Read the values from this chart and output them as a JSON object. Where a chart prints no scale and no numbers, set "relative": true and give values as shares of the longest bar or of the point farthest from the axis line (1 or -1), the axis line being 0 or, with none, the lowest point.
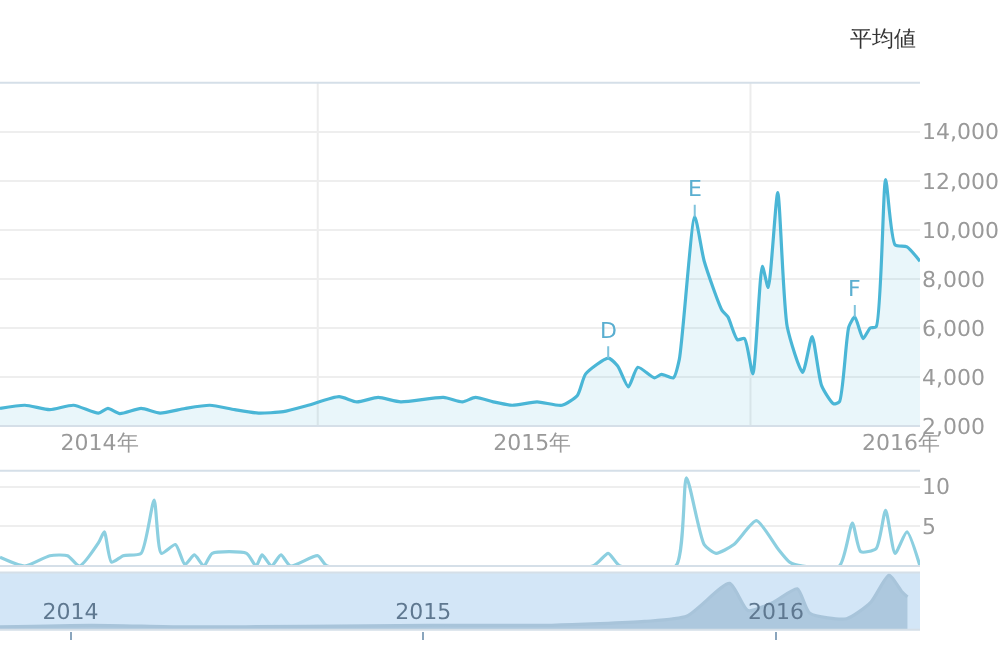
{
  "chart_data": [
    {
      "type": "area",
      "x": [
        "2014-04-08",
        "2014-04-29",
        "2014-05-20",
        "2014-06-09",
        "2014-06-30",
        "2014-07-08",
        "2014-07-18",
        "2014-08-05",
        "2014-08-21",
        "2014-09-11",
        "2014-10-02",
        "2014-10-23",
        "2014-11-12",
        "2014-12-03",
        "2014-12-24",
        "2015-01-19",
        "2015-02-03",
        "2015-02-21",
        "2015-03-12",
        "2015-04-17",
        "2015-05-03",
        "2015-05-14",
        "2015-05-29",
        "2015-06-14",
        "2015-07-05",
        "2015-07-26",
        "2015-08-08",
        "2015-08-15",
        "2015-09-03",
        "2015-09-11",
        "2015-09-20",
        "2015-09-28",
        "2015-10-12",
        "2015-10-18",
        "2015-10-28",
        "2015-11-02",
        "2015-11-15",
        "2015-11-23",
        "2015-12-08",
        "2015-12-13",
        "2015-12-21",
        "2015-12-27",
        "2016-01-03",
        "2016-01-11",
        "2016-01-16",
        "2016-01-24",
        "2016-02-01",
        "2016-02-14",
        "2016-02-22",
        "2016-03-01",
        "2016-03-11",
        "2016-03-16",
        "2016-03-24",
        "2016-03-29",
        "2016-04-05",
        "2016-04-11",
        "2016-04-16",
        "2016-04-24",
        "2016-05-02",
        "2016-05-12",
        "2016-05-23"
      ],
      "series": [
        {
          "color": "#4ab6d6",
          "values": [
            2720,
            2850,
            2670,
            2850,
            2530,
            2720,
            2510,
            2720,
            2530,
            2720,
            2850,
            2670,
            2530,
            2590,
            2850,
            3200,
            2990,
            3170,
            2990,
            3170,
            2990,
            3170,
            2990,
            2850,
            2990,
            2850,
            3250,
            4130,
            4770,
            4450,
            3600,
            4400,
            3970,
            4110,
            3970,
            4720,
            10530,
            8720,
            6720,
            6450,
            5520,
            5570,
            4130,
            8510,
            7650,
            11520,
            6050,
            4190,
            5650,
            3650,
            2910,
            2990,
            6050,
            6450,
            5570,
            6000,
            6050,
            12050,
            9390,
            9310,
            8720
          ]
        }
      ],
      "xlim": [
        "2014-04-08",
        "2016-05-23"
      ],
      "xticks": [
        {
          "value": "2014-07-01",
          "label": "2014年"
        },
        {
          "value": "2015-07-01",
          "label": "2015年"
        },
        {
          "value": "2016-05-07",
          "label": "2016年"
        }
      ],
      "ylim": [
        2000,
        16000
      ],
      "yticks": [
        {
          "value": 2000,
          "label": "2,000"
        },
        {
          "value": 4000,
          "label": "4,000"
        },
        {
          "value": 6000,
          "label": "6,000"
        },
        {
          "value": 8000,
          "label": "8,000"
        },
        {
          "value": 10000,
          "label": "10,000"
        },
        {
          "value": 12000,
          "label": "12,000"
        },
        {
          "value": 14000,
          "label": "14,000"
        }
      ],
      "ref_lines": [
        {
          "axis": "x",
          "value": "2015-01-01",
          "color": "#ececec"
        },
        {
          "axis": "x",
          "value": "2016-01-01",
          "color": "#ececec"
        }
      ],
      "annotations": [
        {
          "text": "D",
          "x": "2015-09-03",
          "y": 4770
        },
        {
          "text": "E",
          "x": "2015-11-15",
          "y": 10530
        },
        {
          "text": "F",
          "x": "2016-03-29",
          "y": 6450
        },
        "平均値"
      ],
      "grid": "y",
      "marker": "none",
      "line_style": "solid"
    },
    {
      "type": "line",
      "x": [
        "2014-04-08",
        "2014-04-29",
        "2014-05-20",
        "2014-06-04",
        "2014-06-14",
        "2014-06-30",
        "2014-07-05",
        "2014-07-11",
        "2014-07-21",
        "2014-08-05",
        "2014-08-16",
        "2014-08-22",
        "2014-09-03",
        "2014-09-11",
        "2014-09-19",
        "2014-09-27",
        "2014-10-04",
        "2014-11-02",
        "2014-11-10",
        "2014-11-15",
        "2014-11-23",
        "2014-12-01",
        "2014-12-09",
        "2015-01-01",
        "2015-01-09",
        "2015-08-21",
        "2015-09-03",
        "2015-09-13",
        "2015-10-30",
        "2015-11-08",
        "2015-11-23",
        "2015-12-03",
        "2015-12-18",
        "2016-01-06",
        "2016-01-24",
        "2016-02-03",
        "2016-02-14",
        "2016-03-16",
        "2016-03-27",
        "2016-04-03",
        "2016-04-16",
        "2016-04-24",
        "2016-05-02",
        "2016-05-12",
        "2016-05-23"
      ],
      "series": [
        {
          "color": "#8ccfe0",
          "values": [
            1.1,
            0,
            1.3,
            1.3,
            0,
            2.9,
            4.3,
            0.5,
            1.3,
            1.6,
            8.3,
            1.6,
            2.7,
            0.2,
            1.4,
            0,
            1.6,
            1.6,
            0,
            1.4,
            0,
            1.4,
            0,
            1.3,
            0,
            0,
            1.6,
            0,
            0,
            11.1,
            2.7,
            1.6,
            2.7,
            5.7,
            2.2,
            0.5,
            0,
            0,
            5.4,
            1.8,
            2.2,
            7,
            1.6,
            4.3,
            0
          ]
        }
      ],
      "xlim": [
        "2014-04-08",
        "2016-05-23"
      ],
      "ylim": [
        0,
        12
      ],
      "yticks": [
        5,
        10
      ],
      "tick_labels": "y",
      "grid": "y",
      "marker": "none",
      "line_style": "solid"
    },
    {
      "type": "area",
      "relative": true,
      "x": [
        "2013-10-20",
        "2014-01-23",
        "2014-04-28",
        "2014-09-02",
        "2015-01-07",
        "2015-05-14",
        "2015-08-18",
        "2015-10-01",
        "2015-11-14",
        "2015-12-03",
        "2015-12-29",
        "2016-01-23",
        "2016-02-05",
        "2016-03-14",
        "2016-04-08",
        "2016-04-27",
        "2016-05-10",
        "2016-05-16"
      ],
      "series": [
        {
          "color": "#a8c4da",
          "values": [
            0.05,
            0.08,
            0.05,
            0.06,
            0.08,
            0.08,
            0.15,
            0.25,
            0.85,
            0.35,
            0.5,
            0.75,
            0.3,
            0.2,
            0.5,
            1.0,
            0.7,
            0.6
          ]
        }
      ],
      "xlim": [
        "2013-10-20",
        "2016-05-29"
      ],
      "xticks": [
        {
          "value": "2014-01-01",
          "label": "2014"
        },
        {
          "value": "2015-01-01",
          "label": "2015"
        },
        {
          "value": "2016-01-01",
          "label": "2016"
        }
      ],
      "tick_labels": "x",
      "marker": "none",
      "line_style": "solid"
    }
  ]
}
